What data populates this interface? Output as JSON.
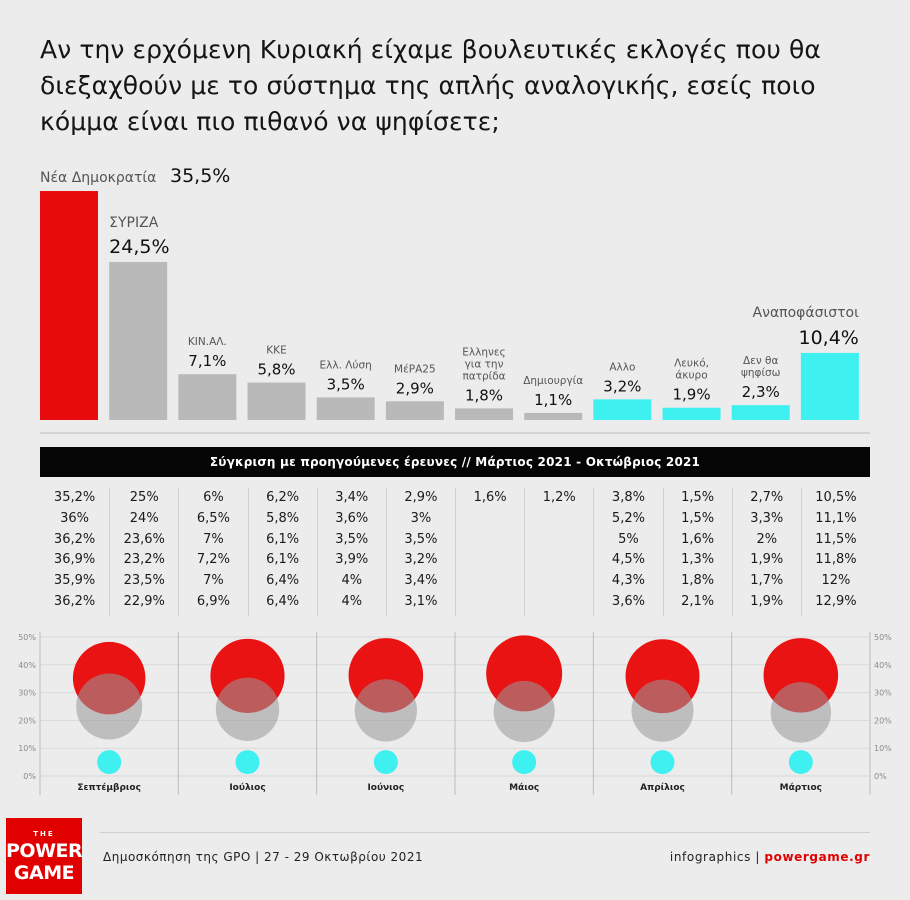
{
  "title": "Αν την ερχόμενη Κυριακή είχαμε βουλευτικές εκλογές που θα διεξαχθούν με το σύστημα της απλής αναλογικής, εσείς ποιο κόμμα είναι πιο πιθανό να ψηφίσετε;",
  "chart_data": [
    {
      "type": "bar",
      "categories": [
        "Νέα Δημοκρατία",
        "ΣΥΡΙΖΑ",
        "ΚΙΝ.ΑΛ.",
        "ΚΚΕ",
        "Ελλ. Λύση",
        "ΜέΡΑ25",
        "Ελληνες για την πατρίδα",
        "Δημιουργία",
        "Αλλο",
        "Λευκό, άκυρο",
        "Δεν θα ψηφίσω",
        "Αναποφάσιστοι"
      ],
      "values": [
        35.5,
        24.5,
        7.1,
        5.8,
        3.5,
        2.9,
        1.8,
        1.1,
        3.2,
        1.9,
        2.3,
        10.4
      ],
      "value_labels": [
        "35,5%",
        "24,5%",
        "7,1%",
        "5,8%",
        "3,5%",
        "2,9%",
        "1,8%",
        "1,1%",
        "3,2%",
        "1,9%",
        "2,3%",
        "10,4%"
      ],
      "colors": [
        "#e80b0b",
        "#b9b9b9",
        "#b9b9b9",
        "#b9b9b9",
        "#b9b9b9",
        "#b9b9b9",
        "#b9b9b9",
        "#b9b9b9",
        "#3ff0f0",
        "#3ff0f0",
        "#3ff0f0",
        "#3ff0f0"
      ]
    },
    {
      "type": "scatter",
      "categories": [
        "Σεπτέμβριος",
        "Ιούλιος",
        "Ιούνιος",
        "Μάιος",
        "Απρίλιος",
        "Μάρτιος"
      ],
      "ylim": [
        0,
        50
      ],
      "yticks": [
        "0%",
        "10%",
        "20%",
        "30%",
        "40%",
        "50%"
      ],
      "series": [
        {
          "values": [
            35.2,
            36,
            36.2,
            36.9,
            35.9,
            36.2
          ],
          "color": "#e80b0b"
        },
        {
          "values": [
            25,
            24,
            23.6,
            23.2,
            23.5,
            22.9
          ],
          "color": "#999999"
        },
        {
          "values": [
            5,
            5,
            5,
            5,
            5,
            5
          ],
          "color": "#3ff0f0"
        }
      ]
    }
  ],
  "history": {
    "banner": "Σύγκριση με προηγούμενες έρευνες // Μάρτιος 2021 - Οκτώβριος 2021",
    "columns": [
      [
        "35,2%",
        "36%",
        "36,2%",
        "36,9%",
        "35,9%",
        "36,2%"
      ],
      [
        "25%",
        "24%",
        "23,6%",
        "23,2%",
        "23,5%",
        "22,9%"
      ],
      [
        "6%",
        "6,5%",
        "7%",
        "7,2%",
        "7%",
        "6,9%"
      ],
      [
        "6,2%",
        "5,8%",
        "6,1%",
        "6,1%",
        "6,4%",
        "6,4%"
      ],
      [
        "3,4%",
        "3,6%",
        "3,5%",
        "3,9%",
        "4%",
        "4%"
      ],
      [
        "2,9%",
        "3%",
        "3,5%",
        "3,2%",
        "3,4%",
        "3,1%"
      ],
      [
        "1,6%",
        "",
        "",
        "",
        "",
        ""
      ],
      [
        "1,2%",
        "",
        "",
        "",
        "",
        ""
      ],
      [
        "3,8%",
        "5,2%",
        "5%",
        "4,5%",
        "4,3%",
        "3,6%"
      ],
      [
        "1,5%",
        "1,5%",
        "1,6%",
        "1,3%",
        "1,8%",
        "2,1%"
      ],
      [
        "2,7%",
        "3,3%",
        "2%",
        "1,9%",
        "1,7%",
        "1,9%"
      ],
      [
        "10,5%",
        "11,1%",
        "11,5%",
        "11,8%",
        "12%",
        "12,9%"
      ]
    ]
  },
  "footer": {
    "logo_the": "THE",
    "logo_line1": "POWER",
    "logo_line2": "GAME",
    "source": "Δημοσκόπηση της GPO | 27 - 29 Οκτωβρίου 2021",
    "credit_prefix": "infographics | ",
    "credit_site": "powergame.gr"
  }
}
